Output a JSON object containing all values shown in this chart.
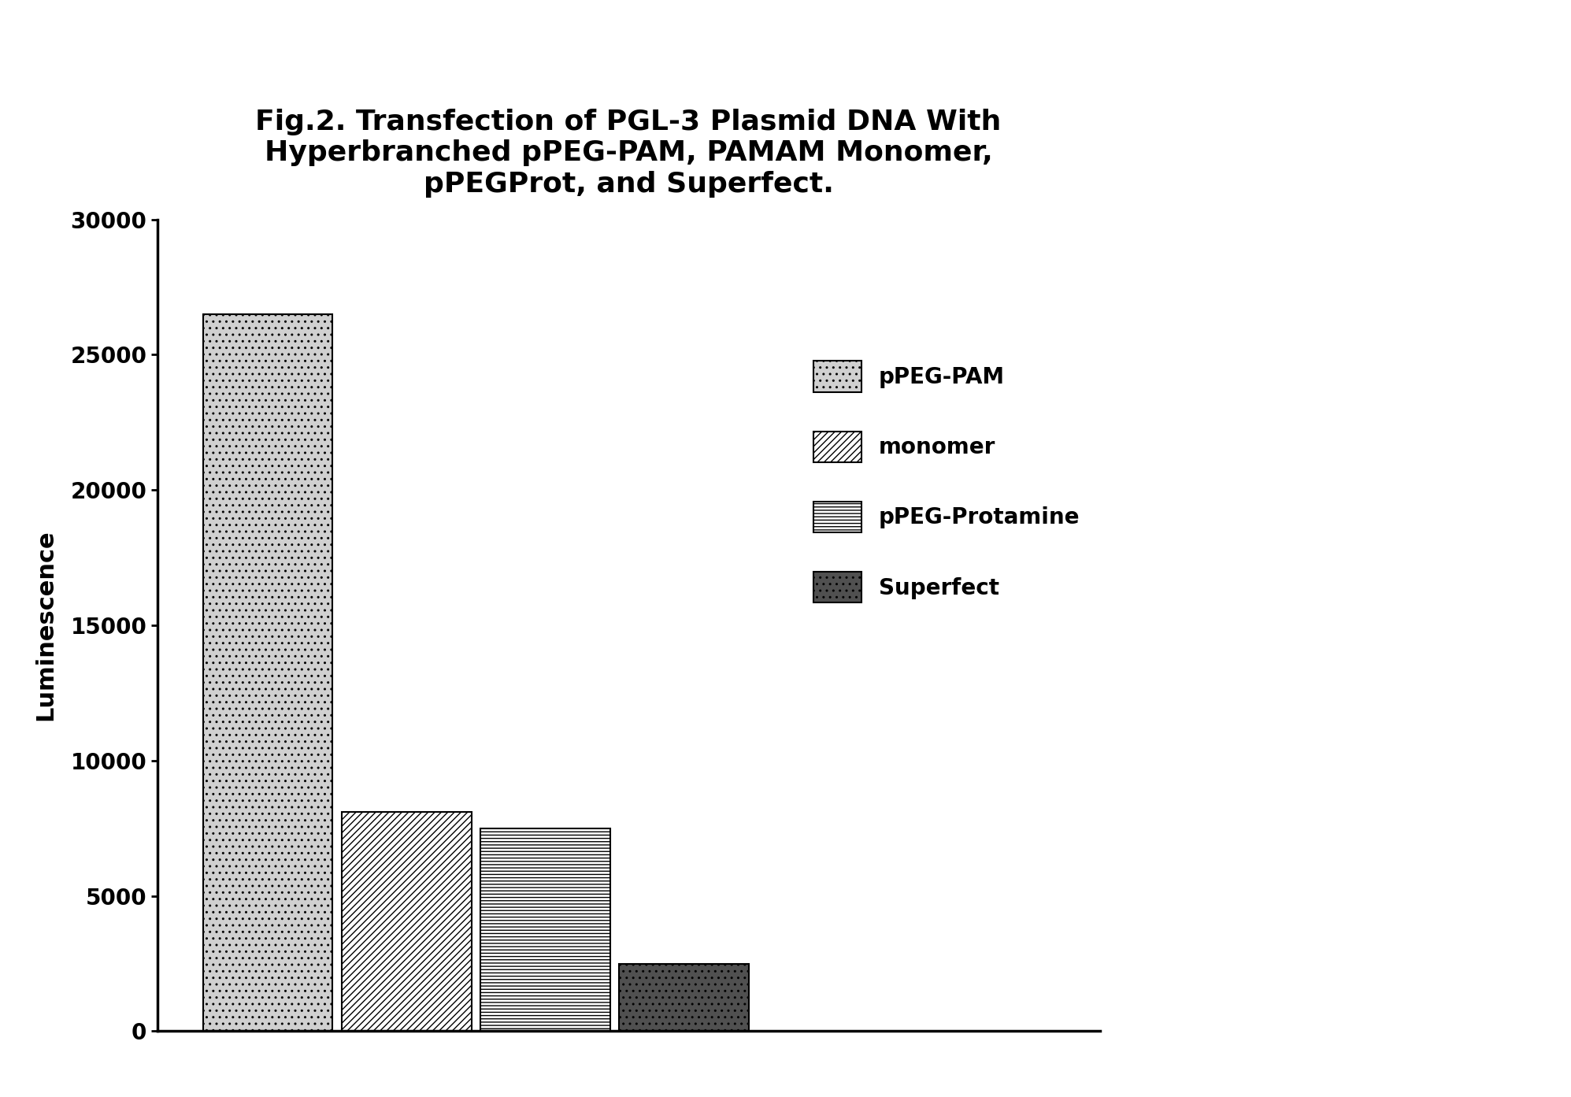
{
  "title_line1": "Fig.2. Transfection of PGL-3 Plasmid DNA With",
  "title_line2": "Hyperbranched pPEG-PAM, PAMAM Monomer,",
  "title_line3": "pPEGProt, and Superfect.",
  "ylabel": "Luminescence",
  "values": [
    26500,
    8100,
    7500,
    2500
  ],
  "categories": [
    "pPEG-PAM",
    "monomer",
    "pPEG-Protamine",
    "Superfect"
  ],
  "ylim": [
    0,
    30000
  ],
  "yticks": [
    0,
    5000,
    10000,
    15000,
    20000,
    25000,
    30000
  ],
  "background_color": "#ffffff",
  "bar_edge_color": "#000000",
  "title_fontsize": 26,
  "axis_label_fontsize": 22,
  "tick_fontsize": 20,
  "legend_fontsize": 20,
  "hatch_list": [
    "..",
    "////",
    "----",
    ".."
  ],
  "face_list": [
    "#d0d0d0",
    "#ffffff",
    "#ffffff",
    "#505050"
  ],
  "legend_hatch": [
    "..",
    "////",
    "----",
    ".."
  ],
  "legend_face": [
    "#d0d0d0",
    "#ffffff",
    "#ffffff",
    "#505050"
  ]
}
